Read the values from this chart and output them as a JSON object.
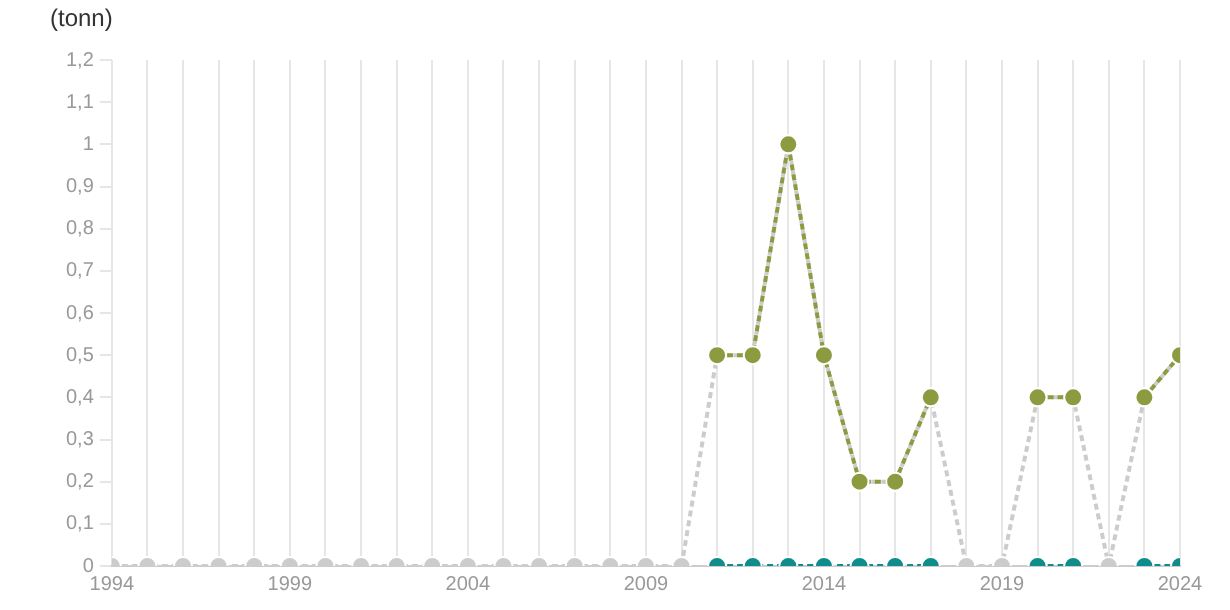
{
  "chart_data": {
    "type": "line",
    "ylabel": "(tonn)",
    "x": [
      1994,
      1995,
      1996,
      1997,
      1998,
      1999,
      2000,
      2001,
      2002,
      2003,
      2004,
      2005,
      2006,
      2007,
      2008,
      2009,
      2010,
      2011,
      2012,
      2013,
      2014,
      2015,
      2016,
      2017,
      2018,
      2019,
      2020,
      2021,
      2022,
      2023,
      2024
    ],
    "series": [
      {
        "color": "#cccccc",
        "values": [
          0,
          0,
          0,
          0,
          0,
          0,
          0,
          0,
          0,
          0,
          0,
          0,
          0,
          0,
          0,
          0,
          0,
          0.5,
          0.5,
          1,
          0.5,
          0.2,
          0.2,
          0.4,
          0,
          0,
          0.4,
          0.4,
          0,
          0.4,
          0.5
        ]
      },
      {
        "color": "#8c9a40",
        "values": [
          null,
          null,
          null,
          null,
          null,
          null,
          null,
          null,
          null,
          null,
          null,
          null,
          null,
          null,
          null,
          null,
          null,
          0.5,
          0.5,
          1,
          0.5,
          0.2,
          0.2,
          0.4,
          null,
          null,
          0.4,
          0.4,
          null,
          0.4,
          0.5
        ]
      },
      {
        "color": "#0f8c8c",
        "values": [
          null,
          null,
          null,
          null,
          null,
          null,
          null,
          null,
          null,
          null,
          null,
          null,
          null,
          null,
          null,
          null,
          null,
          0,
          0,
          0,
          0,
          0,
          0,
          0,
          null,
          null,
          0,
          0,
          null,
          0,
          0
        ]
      }
    ],
    "xlim": [
      1994,
      2024
    ],
    "xticks": [
      1994,
      {
        "value": 1995,
        "label": null
      },
      {
        "value": 1996,
        "label": null
      },
      {
        "value": 1997,
        "label": null
      },
      {
        "value": 1998,
        "label": null
      },
      1999,
      {
        "value": 2000,
        "label": null
      },
      {
        "value": 2001,
        "label": null
      },
      {
        "value": 2002,
        "label": null
      },
      {
        "value": 2003,
        "label": null
      },
      2004,
      {
        "value": 2005,
        "label": null
      },
      {
        "value": 2006,
        "label": null
      },
      {
        "value": 2007,
        "label": null
      },
      {
        "value": 2008,
        "label": null
      },
      2009,
      {
        "value": 2010,
        "label": null
      },
      {
        "value": 2011,
        "label": null
      },
      {
        "value": 2012,
        "label": null
      },
      {
        "value": 2013,
        "label": null
      },
      2014,
      {
        "value": 2015,
        "label": null
      },
      {
        "value": 2016,
        "label": null
      },
      {
        "value": 2017,
        "label": null
      },
      {
        "value": 2018,
        "label": null
      },
      2019,
      {
        "value": 2020,
        "label": null
      },
      {
        "value": 2021,
        "label": null
      },
      {
        "value": 2022,
        "label": null
      },
      {
        "value": 2023,
        "label": null
      },
      2024
    ],
    "ylim": [
      0,
      1.2
    ],
    "yticks": [
      0,
      {
        "value": 0.1,
        "label": "0,1"
      },
      {
        "value": 0.2,
        "label": "0,2"
      },
      {
        "value": 0.3,
        "label": "0,3"
      },
      {
        "value": 0.4,
        "label": "0,4"
      },
      {
        "value": 0.5,
        "label": "0,5"
      },
      {
        "value": 0.6,
        "label": "0,6"
      },
      {
        "value": 0.7,
        "label": "0,7"
      },
      {
        "value": 0.8,
        "label": "0,8"
      },
      {
        "value": 0.9,
        "label": "0,9"
      },
      1,
      {
        "value": 1.1,
        "label": "1,1"
      },
      {
        "value": 1.2,
        "label": "1,2"
      }
    ],
    "grid": "x",
    "legend": false,
    "marker": "circle",
    "line_style": "dashed"
  }
}
